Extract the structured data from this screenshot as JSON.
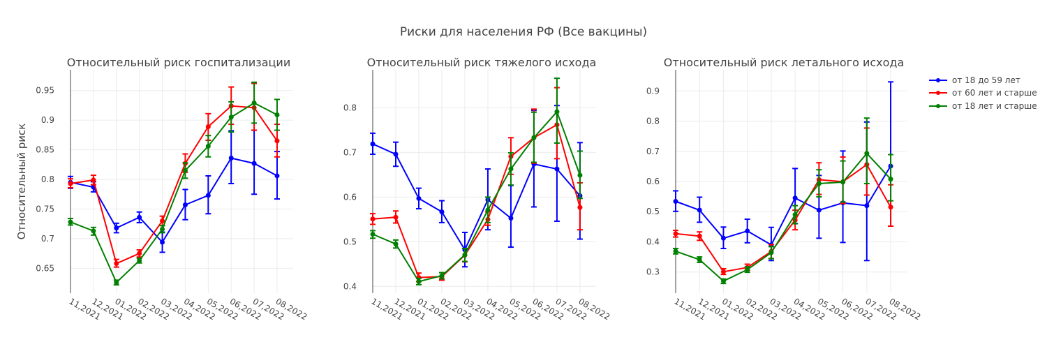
{
  "suptitle": "Риски для населения РФ (Все вакцины)",
  "colors": {
    "blue": "#0000ff",
    "red": "#ff0000",
    "green": "#008000"
  },
  "legend": {
    "placement": "top-right",
    "items": [
      {
        "label": "от 18 до 59 лет",
        "color": "#0000ff"
      },
      {
        "label": "от 60 лет и старше",
        "color": "#ff0000"
      },
      {
        "label": "от 18 лет и старше",
        "color": "#008000"
      }
    ]
  },
  "chart_data": [
    {
      "type": "line",
      "title": "Относительный риск госпитализации",
      "xlabel": "",
      "ylabel": "Относительный риск",
      "categories": [
        "11,2021",
        "12,2021",
        "01,2022",
        "02,2022",
        "03,2022",
        "04,2022",
        "05,2022",
        "06,2022",
        "07,2022",
        "08,2022"
      ],
      "ylim": [
        0.608,
        0.985
      ],
      "yticks": [
        0.65,
        0.7,
        0.75,
        0.8,
        0.85,
        0.9,
        0.95
      ],
      "ytick_labels": [
        "0.65",
        "0.7",
        "0.75",
        "0.8",
        "0.85",
        "0.9",
        "0.95"
      ],
      "grid": true,
      "series": [
        {
          "name": "от 18 до 59 лет",
          "color": "#0000ff",
          "values": [
            0.795,
            0.787,
            0.718,
            0.736,
            0.694,
            0.757,
            0.773,
            0.836,
            0.827,
            0.806
          ],
          "err_low": [
            0.785,
            0.779,
            0.71,
            0.727,
            0.677,
            0.732,
            0.742,
            0.793,
            0.775,
            0.767
          ],
          "err_high": [
            0.805,
            0.796,
            0.726,
            0.745,
            0.711,
            0.783,
            0.806,
            0.882,
            0.883,
            0.847
          ]
        },
        {
          "name": "от 60 лет и старше",
          "color": "#ff0000",
          "values": [
            0.793,
            0.799,
            0.658,
            0.675,
            0.73,
            0.827,
            0.889,
            0.924,
            0.921,
            0.865
          ],
          "err_low": [
            0.786,
            0.791,
            0.652,
            0.669,
            0.722,
            0.812,
            0.866,
            0.893,
            0.883,
            0.838
          ],
          "err_high": [
            0.801,
            0.807,
            0.665,
            0.681,
            0.738,
            0.843,
            0.911,
            0.956,
            0.962,
            0.893
          ]
        },
        {
          "name": "от 18 лет и старше",
          "color": "#008000",
          "values": [
            0.728,
            0.713,
            0.626,
            0.663,
            0.716,
            0.815,
            0.856,
            0.905,
            0.929,
            0.909
          ],
          "err_low": [
            0.723,
            0.706,
            0.622,
            0.659,
            0.71,
            0.802,
            0.838,
            0.88,
            0.895,
            0.883
          ],
          "err_high": [
            0.734,
            0.719,
            0.63,
            0.667,
            0.722,
            0.828,
            0.874,
            0.931,
            0.964,
            0.935
          ]
        }
      ]
    },
    {
      "type": "line",
      "title": "Относительный риск тяжелого исхода",
      "xlabel": "",
      "ylabel": "",
      "categories": [
        "11,2021",
        "12,2021",
        "01,2022",
        "02,2022",
        "03,2022",
        "04,2022",
        "05,2022",
        "06,2022",
        "07,2022",
        "08,2022"
      ],
      "ylim": [
        0.385,
        0.885
      ],
      "yticks": [
        0.4,
        0.5,
        0.6,
        0.7,
        0.8
      ],
      "ytick_labels": [
        "0.4",
        "0.5",
        "0.6",
        "0.7",
        "0.8"
      ],
      "grid": true,
      "series": [
        {
          "name": "от 18 до 59 лет",
          "color": "#0000ff",
          "values": [
            0.719,
            0.696,
            0.597,
            0.567,
            0.482,
            0.594,
            0.553,
            0.674,
            0.663,
            0.603
          ],
          "err_low": [
            0.696,
            0.669,
            0.574,
            0.543,
            0.444,
            0.527,
            0.488,
            0.578,
            0.546,
            0.506
          ],
          "err_high": [
            0.743,
            0.723,
            0.62,
            0.592,
            0.521,
            0.663,
            0.626,
            0.794,
            0.805,
            0.722
          ]
        },
        {
          "name": "от 60 лет и старше",
          "color": "#ff0000",
          "values": [
            0.551,
            0.555,
            0.42,
            0.422,
            0.47,
            0.55,
            0.691,
            0.733,
            0.762,
            0.577
          ],
          "err_low": [
            0.539,
            0.542,
            0.411,
            0.414,
            0.455,
            0.537,
            0.651,
            0.676,
            0.686,
            0.527
          ],
          "err_high": [
            0.563,
            0.569,
            0.43,
            0.431,
            0.485,
            0.567,
            0.733,
            0.797,
            0.845,
            0.632
          ]
        },
        {
          "name": "от 18 лет и старше",
          "color": "#008000",
          "values": [
            0.517,
            0.495,
            0.411,
            0.424,
            0.471,
            0.571,
            0.663,
            0.733,
            0.791,
            0.649
          ],
          "err_low": [
            0.508,
            0.486,
            0.404,
            0.417,
            0.456,
            0.543,
            0.627,
            0.678,
            0.721,
            0.597
          ],
          "err_high": [
            0.525,
            0.504,
            0.418,
            0.431,
            0.485,
            0.6,
            0.699,
            0.79,
            0.866,
            0.703
          ]
        }
      ]
    },
    {
      "type": "line",
      "title": "Относительный риск летального исхода",
      "xlabel": "",
      "ylabel": "",
      "categories": [
        "11,2021",
        "12,2021",
        "01,2022",
        "02,2022",
        "03,2022",
        "04,2022",
        "05,2022",
        "06,2022",
        "07,2022",
        "08,2022"
      ],
      "ylim": [
        0.23,
        0.97
      ],
      "yticks": [
        0.3,
        0.4,
        0.5,
        0.6,
        0.7,
        0.8,
        0.9
      ],
      "ytick_labels": [
        "0.3",
        "0.4",
        "0.5",
        "0.6",
        "0.7",
        "0.8",
        "0.9"
      ],
      "grid": true,
      "series": [
        {
          "name": "от 18 до 59 лет",
          "color": "#0000ff",
          "values": [
            0.534,
            0.505,
            0.412,
            0.436,
            0.39,
            0.545,
            0.505,
            0.529,
            0.52,
            0.651
          ],
          "err_low": [
            0.501,
            0.465,
            0.378,
            0.397,
            0.338,
            0.461,
            0.412,
            0.398,
            0.338,
            0.452
          ],
          "err_high": [
            0.569,
            0.548,
            0.449,
            0.475,
            0.448,
            0.643,
            0.62,
            0.701,
            0.797,
            0.93
          ]
        },
        {
          "name": "от 60 лет и старше",
          "color": "#ff0000",
          "values": [
            0.427,
            0.419,
            0.301,
            0.315,
            0.368,
            0.472,
            0.606,
            0.599,
            0.656,
            0.515
          ],
          "err_low": [
            0.416,
            0.405,
            0.292,
            0.305,
            0.345,
            0.44,
            0.557,
            0.527,
            0.555,
            0.452
          ],
          "err_high": [
            0.438,
            0.433,
            0.311,
            0.326,
            0.391,
            0.505,
            0.662,
            0.681,
            0.777,
            0.589
          ]
        },
        {
          "name": "от 18 лет и старше",
          "color": "#008000",
          "values": [
            0.369,
            0.341,
            0.27,
            0.308,
            0.364,
            0.49,
            0.593,
            0.598,
            0.693,
            0.608
          ],
          "err_low": [
            0.36,
            0.332,
            0.262,
            0.299,
            0.344,
            0.46,
            0.549,
            0.532,
            0.593,
            0.536
          ],
          "err_high": [
            0.378,
            0.35,
            0.277,
            0.317,
            0.384,
            0.52,
            0.639,
            0.668,
            0.81,
            0.689
          ]
        }
      ]
    }
  ]
}
